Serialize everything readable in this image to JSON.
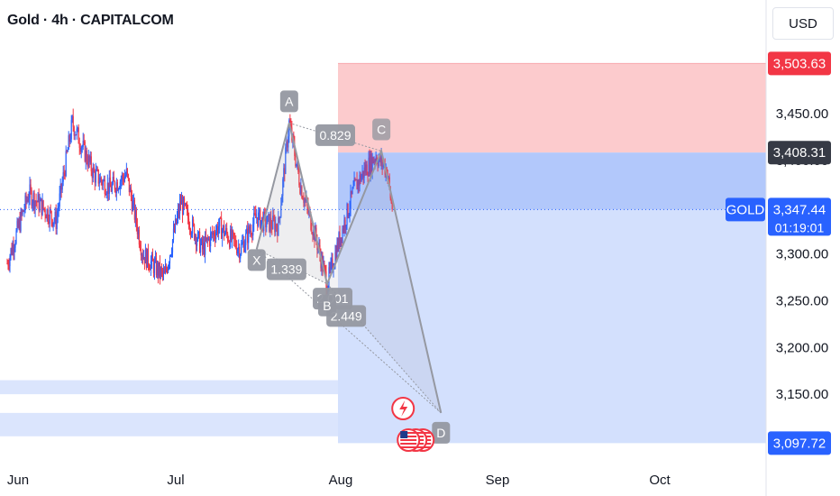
{
  "header": {
    "title": "Gold · 4h · CAPITALCOM",
    "currency": "USD"
  },
  "colors": {
    "up": "#2962ff",
    "down": "#f23645",
    "stop_zone": "#fccbcd",
    "target_zone": "#d3e0fd",
    "entry_zone": "#b2c8fb",
    "pattern": "#9598a1",
    "label_bg": "#9598a1",
    "price_red": "#f23645",
    "price_dark": "#363a45",
    "price_blue": "#2962ff"
  },
  "chart_data": {
    "type": "candlestick",
    "symbol": "GOLD",
    "timeframe": "4h",
    "x_ticks": [
      "Jun",
      "Jul",
      "Aug",
      "Sep",
      "Oct"
    ],
    "y_ticks": [
      3450,
      3400,
      3350,
      3300,
      3250,
      3200,
      3150,
      3100
    ],
    "y_tick_labels": [
      "3,450.00",
      "3,400.00",
      "3,350.00",
      "3,300.00",
      "3,250.00",
      "3,200.00",
      "3,150.00",
      "3,100.00"
    ],
    "ylim": [
      3065,
      3545
    ],
    "current_price": 3347.44,
    "current_price_label": "3,347.44",
    "countdown": "01:19:01",
    "price_series_points": [
      [
        "Jun 1",
        3290
      ],
      [
        "Jun 5",
        3365
      ],
      [
        "Jun 10",
        3335
      ],
      [
        "Jun 13",
        3440
      ],
      [
        "Jun 17",
        3385
      ],
      [
        "Jun 20",
        3370
      ],
      [
        "Jun 23",
        3385
      ],
      [
        "Jun 26",
        3300
      ],
      [
        "Jun 30",
        3275
      ],
      [
        "Jul 3",
        3355
      ],
      [
        "Jul 7",
        3305
      ],
      [
        "Jul 10",
        3330
      ],
      [
        "Jul 14",
        3305
      ],
      [
        "Jul 17",
        3340
      ],
      [
        "Jul 18",
        3335
      ],
      [
        "Jul 21",
        3330
      ],
      [
        "Jul 23",
        3440
      ],
      [
        "Jul 25",
        3375
      ],
      [
        "Jul 28",
        3315
      ],
      [
        "Jul 30",
        3268
      ],
      [
        "Aug 1",
        3310
      ],
      [
        "Aug 4",
        3370
      ],
      [
        "Aug 6",
        3390
      ],
      [
        "Aug 8",
        3405
      ],
      [
        "Aug 10",
        3390
      ],
      [
        "Aug 11",
        3347
      ]
    ],
    "harmonic_pattern": {
      "points": [
        {
          "label": "X",
          "date": "Jul 17",
          "price": 3305
        },
        {
          "label": "A",
          "date": "Jul 23",
          "price": 3440
        },
        {
          "label": "B",
          "date": "Jul 30",
          "price": 3268
        },
        {
          "label": "C",
          "date": "Aug 9",
          "price": 3410
        },
        {
          "label": "D",
          "date": "Aug 20",
          "price": 3130
        }
      ],
      "ratios": [
        "0.829",
        "1.339",
        "2.449",
        "2.001"
      ]
    },
    "position": {
      "stop_loss": 3503.63,
      "stop_loss_label": "3,503.63",
      "entry": 3408.31,
      "entry_label": "3,408.31",
      "take_profit": 3097.72,
      "take_profit_label": "3,097.72",
      "start_date": "Aug 1"
    },
    "support_bands": [
      [
        3150,
        3165
      ],
      [
        3105,
        3130
      ]
    ]
  }
}
